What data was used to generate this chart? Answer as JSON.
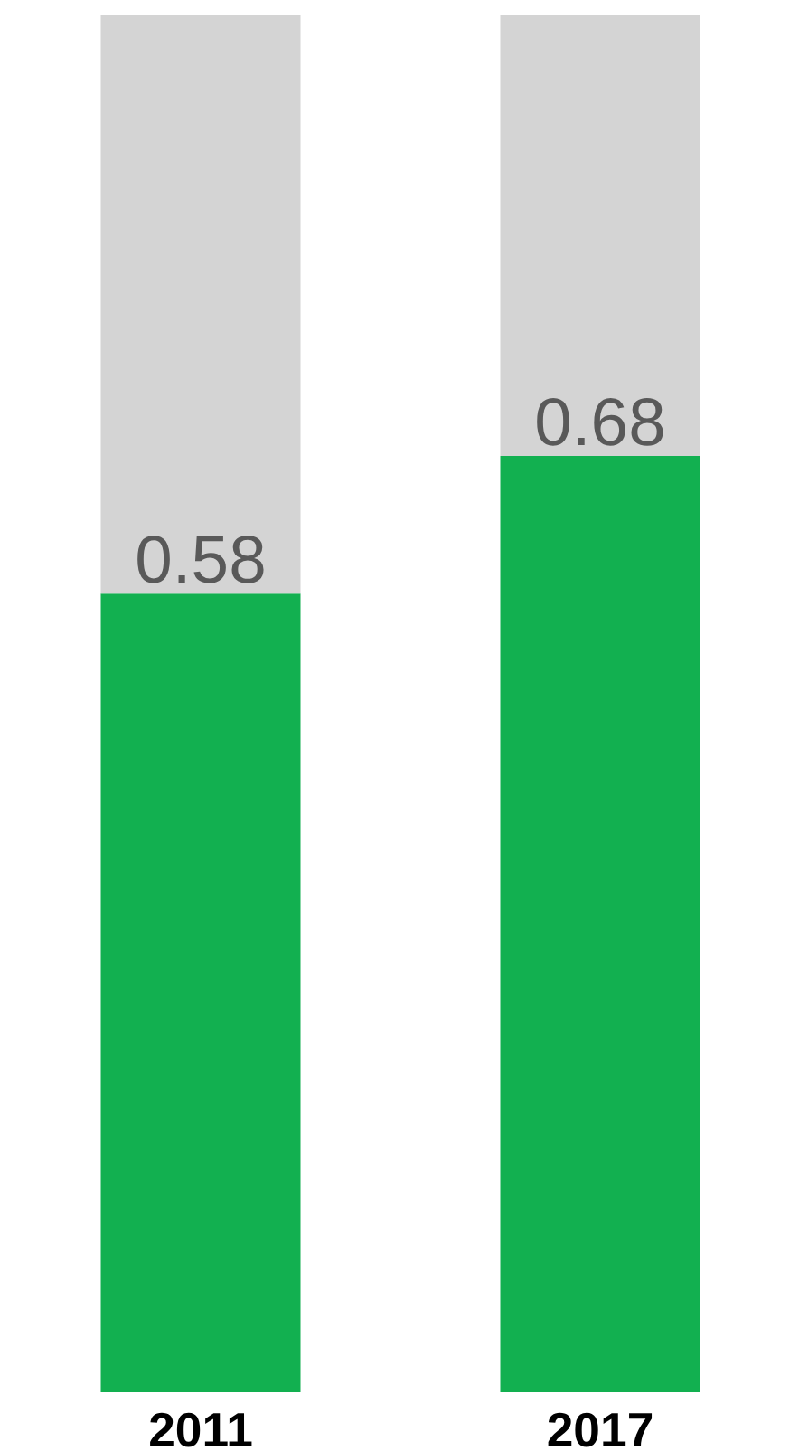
{
  "chart_data": {
    "type": "bar",
    "stacked": true,
    "categories": [
      "2011",
      "2017"
    ],
    "series": [
      {
        "color": "#12b050",
        "values": [
          0.58,
          0.68
        ],
        "value_labels": [
          "0.58",
          "0.68"
        ]
      },
      {
        "color": "#d4d4d4",
        "values": [
          0.42,
          0.32
        ]
      }
    ],
    "grid": false
  }
}
